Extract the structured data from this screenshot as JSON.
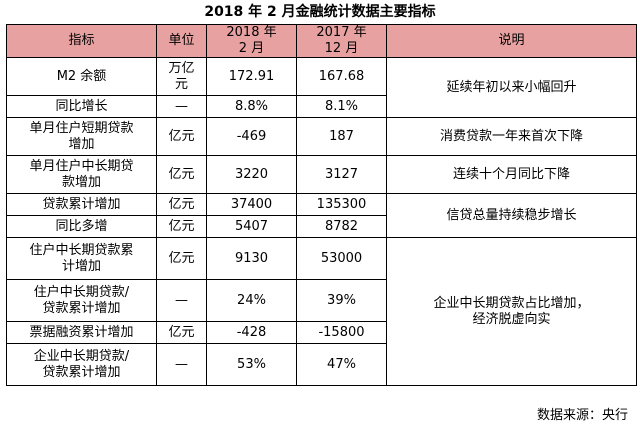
{
  "title": "2018 年 2 月金融统计数据主要指标",
  "headers": {
    "indicator": "指标",
    "unit": "单位",
    "col_2018": "2018 年\n2 月",
    "col_2017": "2017 年\n12 月",
    "note": "说明"
  },
  "rows": [
    {
      "indicator": "M2 余额",
      "unit": "万亿\n元",
      "v2018": "172.91",
      "v2017": "167.68"
    },
    {
      "indicator": "同比增长",
      "unit": "—",
      "v2018": "8.8%",
      "v2017": "8.1%"
    },
    {
      "indicator": "单月住户短期贷款\n增加",
      "unit": "亿元",
      "v2018": "-469",
      "v2017": "187"
    },
    {
      "indicator": "单月住户中长期贷\n款增加",
      "unit": "亿元",
      "v2018": "3220",
      "v2017": "3127"
    },
    {
      "indicator": "贷款累计增加",
      "unit": "亿元",
      "v2018": "37400",
      "v2017": "135300"
    },
    {
      "indicator": "同比多增",
      "unit": "亿元",
      "v2018": "5407",
      "v2017": "8782"
    },
    {
      "indicator": "住户中长期贷款累\n计增加",
      "unit": "亿元",
      "v2018": "9130",
      "v2017": "53000"
    },
    {
      "indicator": "住户中长期贷款/\n贷款累计增加",
      "unit": "—",
      "v2018": "24%",
      "v2017": "39%"
    },
    {
      "indicator": "票据融资累计增加",
      "unit": "亿元",
      "v2018": "-428",
      "v2017": "-15800"
    },
    {
      "indicator": "企业中长期贷款/\n贷款累计增加",
      "unit": "—",
      "v2018": "53%",
      "v2017": "47%"
    }
  ],
  "notes": [
    "延续年初以来小幅回升",
    "消费贷款一年来首次下降",
    "连续十个月同比下降",
    "信贷总量持续稳步增长",
    "企业中长期贷款占比增加，\n经济脱虚向实"
  ],
  "source": "数据来源：央行",
  "colors": {
    "header_bg": "#e8a1a1",
    "border": "#000000"
  }
}
